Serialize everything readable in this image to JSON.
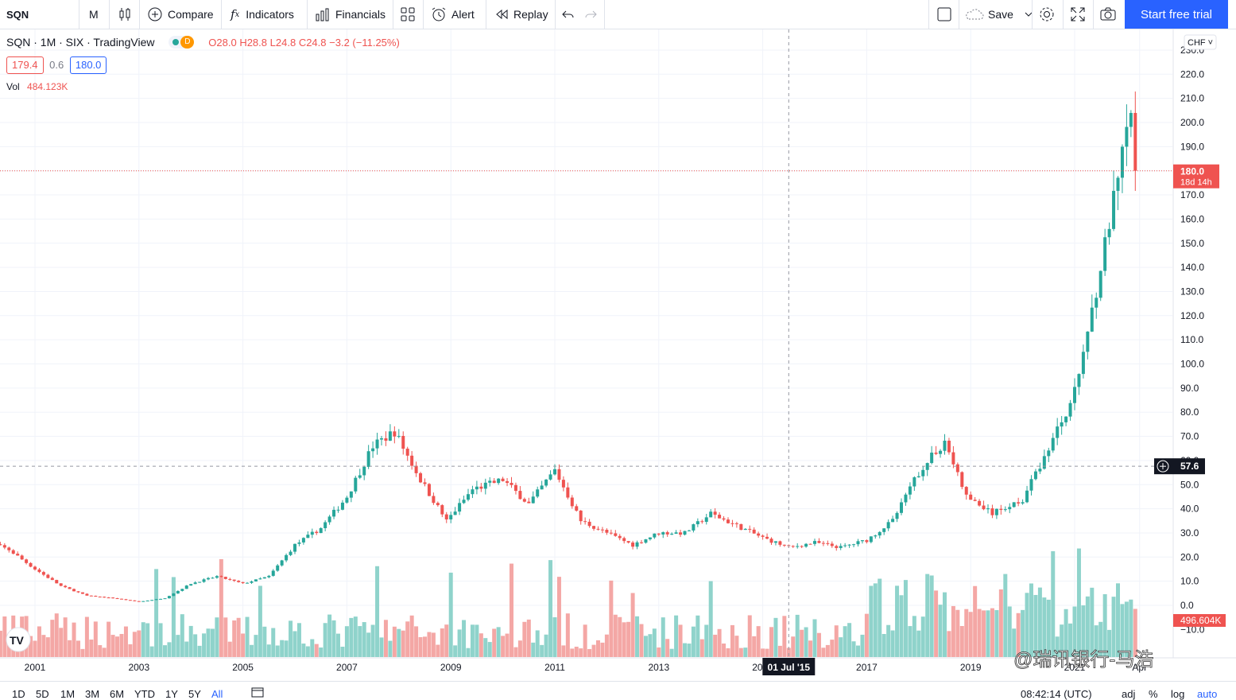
{
  "toolbar": {
    "symbol": "SQN",
    "interval": "M",
    "compare": "Compare",
    "indicators": "Indicators",
    "financials": "Financials",
    "alert": "Alert",
    "replay": "Replay",
    "save": "Save",
    "start_trial": "Start free trial"
  },
  "legend": {
    "title": "SQN · 1M · SIX · TradingView",
    "badge": "D",
    "o_label": "O",
    "o_value": "28.0",
    "h_label": "H",
    "h_value": "28.8",
    "l_label": "L",
    "l_value": "24.8",
    "c_label": "C",
    "c_value": "24.8",
    "change": "−3.2 (−11.25%)",
    "bid": "179.4",
    "spread": "0.6",
    "ask": "180.0",
    "vol_label": "Vol",
    "vol_value": "484.123K"
  },
  "price_axis": {
    "currency": "CHF",
    "ticks": [
      "230.0",
      "220.0",
      "210.0",
      "200.0",
      "190.0",
      "180.0",
      "170.0",
      "160.0",
      "150.0",
      "140.0",
      "130.0",
      "120.0",
      "110.0",
      "100.0",
      "90.0",
      "80.0",
      "70.0",
      "60.0",
      "50.0",
      "40.0",
      "30.0",
      "20.0",
      "10.0",
      "0.0",
      "−10.0"
    ],
    "last_price_label": "180.0",
    "countdown_label": "18d 14h",
    "crosshair_label": "57.6",
    "volume_label": "496.604K"
  },
  "time_axis": {
    "ticks": [
      "2001",
      "2003",
      "2005",
      "2007",
      "2009",
      "2011",
      "2013",
      "2015",
      "2017",
      "2019",
      "2021",
      "Apr"
    ],
    "crosshair_label": "01 Jul '15"
  },
  "bottombar": {
    "ranges": [
      "1D",
      "5D",
      "1M",
      "3M",
      "6M",
      "YTD",
      "1Y",
      "5Y",
      "All"
    ],
    "active_range": "All",
    "time": "08:42:14 (UTC)",
    "adj": "adj",
    "percent": "%",
    "log": "log",
    "auto": "auto"
  },
  "watermark": "@瑞讯银行-马浩",
  "colors": {
    "up": "#26a69a",
    "down": "#ef5350",
    "up_vol": "#8fd3cb",
    "down_vol": "#f4a7a5",
    "accent": "#2962ff"
  },
  "chart_data": {
    "type": "candlestick",
    "interval": "1M",
    "ylim": [
      -10,
      235
    ],
    "x_start": "2000-01",
    "x_end": "2022-03",
    "last_price": 180.0,
    "crosshair_price": 57.6,
    "crosshair_date": "2015-07",
    "closes": [
      {
        "date": "2000-01",
        "close": 27
      },
      {
        "date": "2000-07",
        "close": 23
      },
      {
        "date": "2001-01",
        "close": 15
      },
      {
        "date": "2001-07",
        "close": 8
      },
      {
        "date": "2002-01",
        "close": 4
      },
      {
        "date": "2002-07",
        "close": 3
      },
      {
        "date": "2003-01",
        "close": 1.5
      },
      {
        "date": "2003-07",
        "close": 3
      },
      {
        "date": "2004-01",
        "close": 9
      },
      {
        "date": "2004-07",
        "close": 12
      },
      {
        "date": "2005-01",
        "close": 9
      },
      {
        "date": "2005-07",
        "close": 12
      },
      {
        "date": "2006-01",
        "close": 25
      },
      {
        "date": "2006-07",
        "close": 32
      },
      {
        "date": "2007-01",
        "close": 45
      },
      {
        "date": "2007-07",
        "close": 66
      },
      {
        "date": "2007-12",
        "close": 72
      },
      {
        "date": "2008-06",
        "close": 52
      },
      {
        "date": "2008-12",
        "close": 35
      },
      {
        "date": "2009-06",
        "close": 48
      },
      {
        "date": "2010-01",
        "close": 52
      },
      {
        "date": "2010-07",
        "close": 42
      },
      {
        "date": "2011-01",
        "close": 56
      },
      {
        "date": "2011-07",
        "close": 35
      },
      {
        "date": "2012-01",
        "close": 30
      },
      {
        "date": "2012-07",
        "close": 25
      },
      {
        "date": "2013-01",
        "close": 30
      },
      {
        "date": "2013-07",
        "close": 30
      },
      {
        "date": "2014-01",
        "close": 38
      },
      {
        "date": "2014-07",
        "close": 33
      },
      {
        "date": "2015-01",
        "close": 28
      },
      {
        "date": "2015-07",
        "close": 24
      },
      {
        "date": "2016-01",
        "close": 26
      },
      {
        "date": "2016-07",
        "close": 24
      },
      {
        "date": "2017-01",
        "close": 27
      },
      {
        "date": "2017-07",
        "close": 35
      },
      {
        "date": "2018-01",
        "close": 55
      },
      {
        "date": "2018-07",
        "close": 68
      },
      {
        "date": "2018-12",
        "close": 45
      },
      {
        "date": "2019-06",
        "close": 38
      },
      {
        "date": "2020-01",
        "close": 44
      },
      {
        "date": "2020-07",
        "close": 65
      },
      {
        "date": "2021-01",
        "close": 88
      },
      {
        "date": "2021-07",
        "close": 140
      },
      {
        "date": "2021-12",
        "close": 185
      },
      {
        "date": "2022-02",
        "close": 205
      },
      {
        "date": "2022-03",
        "close": 180
      }
    ]
  }
}
